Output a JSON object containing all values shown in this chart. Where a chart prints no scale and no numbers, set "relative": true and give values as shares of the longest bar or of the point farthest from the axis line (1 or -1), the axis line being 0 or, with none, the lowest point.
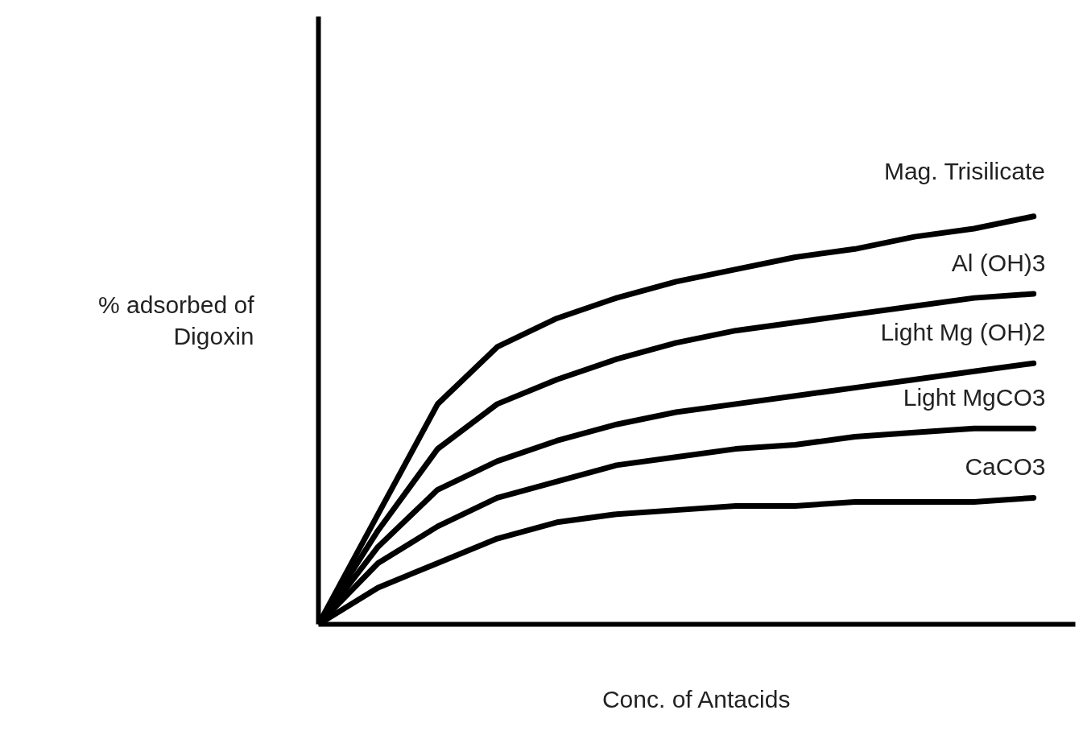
{
  "chart_data": {
    "type": "line",
    "relative": true,
    "xlabel": "Conc. of Antacids",
    "ylabel": "% adsorbed of\nDigoxin",
    "categories": [
      null,
      null,
      null,
      null,
      null,
      null,
      null,
      null,
      null,
      null,
      null,
      null,
      null
    ],
    "series": [
      {
        "name": "Mag. Trisilicate",
        "color": "#000000",
        "values": [
          0,
          0.27,
          0.54,
          0.68,
          0.75,
          0.8,
          0.84,
          0.87,
          0.9,
          0.92,
          0.95,
          0.97,
          1
        ]
      },
      {
        "name": "Al (OH)3",
        "color": "#000000",
        "values": [
          0,
          0.23,
          0.43,
          0.54,
          0.6,
          0.65,
          0.69,
          0.72,
          0.74,
          0.76,
          0.78,
          0.8,
          0.81
        ]
      },
      {
        "name": "Light Mg (OH)2",
        "color": "#000000",
        "values": [
          0,
          0.19,
          0.33,
          0.4,
          0.45,
          0.49,
          0.52,
          0.54,
          0.56,
          0.58,
          0.6,
          0.62,
          0.64
        ]
      },
      {
        "name": "Light MgCO3",
        "color": "#000000",
        "values": [
          0,
          0.15,
          0.24,
          0.31,
          0.35,
          0.39,
          0.41,
          0.43,
          0.44,
          0.46,
          0.47,
          0.48,
          0.48
        ]
      },
      {
        "name": "CaCO3",
        "color": "#000000",
        "values": [
          0,
          0.09,
          0.15,
          0.21,
          0.25,
          0.27,
          0.28,
          0.29,
          0.29,
          0.3,
          0.3,
          0.3,
          0.31
        ]
      }
    ],
    "grid": false,
    "marker": "none",
    "line_style": "solid"
  }
}
